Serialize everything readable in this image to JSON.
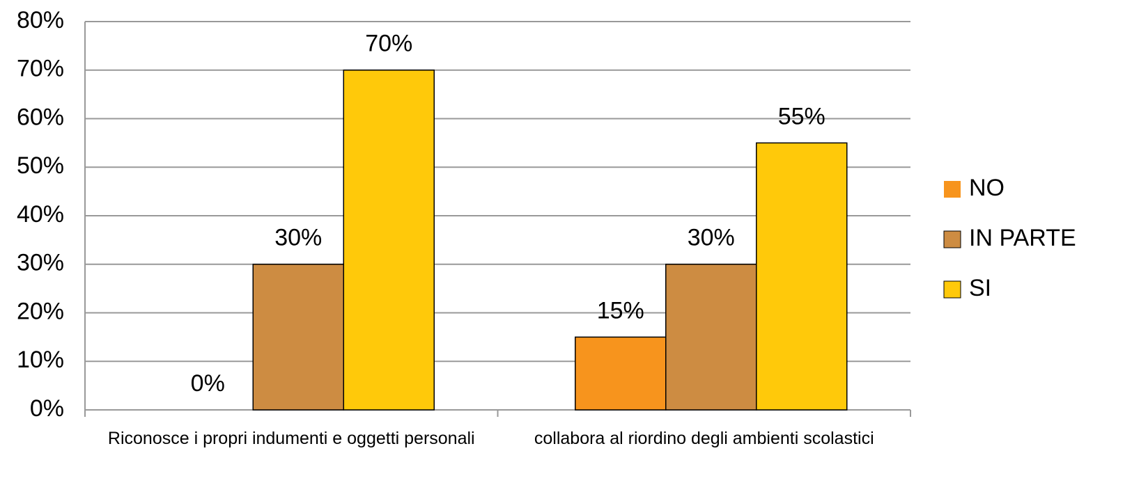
{
  "chart_data": {
    "type": "bar",
    "categories": [
      "Riconosce i propri indumenti e oggetti personali",
      "collabora al riordino degli ambienti scolastici"
    ],
    "series": [
      {
        "name": "NO",
        "color": "#f7941d",
        "values": [
          0,
          15
        ],
        "value_labels": [
          "0%",
          "15%"
        ]
      },
      {
        "name": "IN PARTE",
        "color": "#cd8c42",
        "values": [
          30,
          30
        ],
        "value_labels": [
          "30%",
          "30%"
        ]
      },
      {
        "name": "SI",
        "color": "#ffc90a",
        "values": [
          70,
          55
        ],
        "value_labels": [
          "70%",
          "55%"
        ]
      }
    ],
    "ylim": [
      0,
      80
    ],
    "yticks": [
      {
        "value": 0,
        "label": "0%"
      },
      {
        "value": 10,
        "label": "10%"
      },
      {
        "value": 20,
        "label": "20%"
      },
      {
        "value": 30,
        "label": "30%"
      },
      {
        "value": 40,
        "label": "40%"
      },
      {
        "value": 50,
        "label": "50%"
      },
      {
        "value": 60,
        "label": "60%"
      },
      {
        "value": 70,
        "label": "70%"
      },
      {
        "value": 80,
        "label": "80%"
      }
    ],
    "grid": true,
    "legend": "right"
  }
}
